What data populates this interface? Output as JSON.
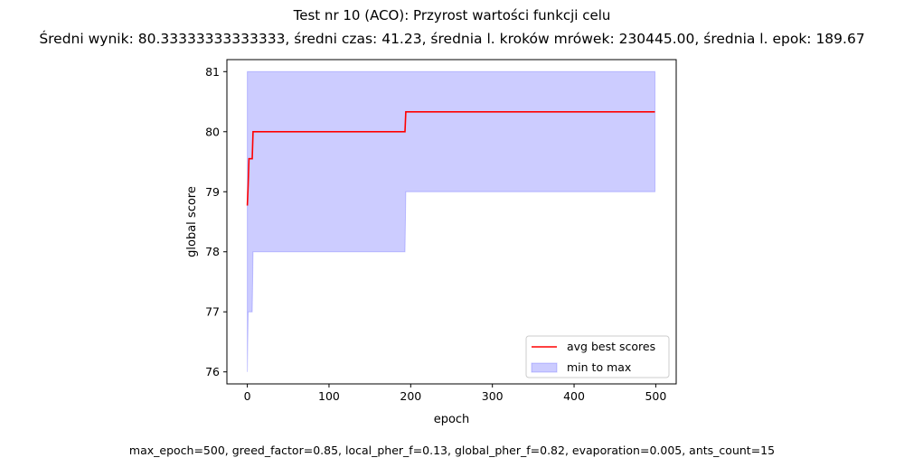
{
  "chart_data": {
    "type": "line",
    "title": "Test nr 10 (ACO): Przyrost wartości funkcji celu",
    "subtitle": "Średni wynik: 80.33333333333333, średni czas: 41.23, średnia l. kroków mrówek: 230445.00, średnia l. epok: 189.67",
    "xlabel": "epoch",
    "ylabel": "global score",
    "xlim": [
      -25,
      525
    ],
    "ylim": [
      75.8,
      81.2
    ],
    "xticks": [
      0,
      100,
      200,
      300,
      400,
      500
    ],
    "yticks": [
      76,
      77,
      78,
      79,
      80,
      81
    ],
    "grid": false,
    "legend_position": "bottom-right",
    "series": [
      {
        "name": "avg best scores",
        "kind": "line",
        "color": "#ff0000",
        "points": [
          [
            0,
            78.77
          ],
          [
            1,
            79.1
          ],
          [
            2,
            79.55
          ],
          [
            6,
            79.55
          ],
          [
            7,
            80.0
          ],
          [
            193,
            80.0
          ],
          [
            194,
            80.33
          ],
          [
            499,
            80.33
          ]
        ]
      },
      {
        "name": "min to max",
        "kind": "band",
        "color": "#0000ff",
        "upper": [
          [
            0,
            81.0
          ],
          [
            499,
            81.0
          ]
        ],
        "lower": [
          [
            0,
            76.0
          ],
          [
            1,
            77.0
          ],
          [
            6,
            77.0
          ],
          [
            7,
            78.0
          ],
          [
            193,
            78.0
          ],
          [
            194,
            79.0
          ],
          [
            499,
            79.0
          ]
        ]
      }
    ]
  },
  "footer": "max_epoch=500, greed_factor=0.85, local_pher_f=0.13, global_pher_f=0.82, evaporation=0.005, ants_count=15"
}
